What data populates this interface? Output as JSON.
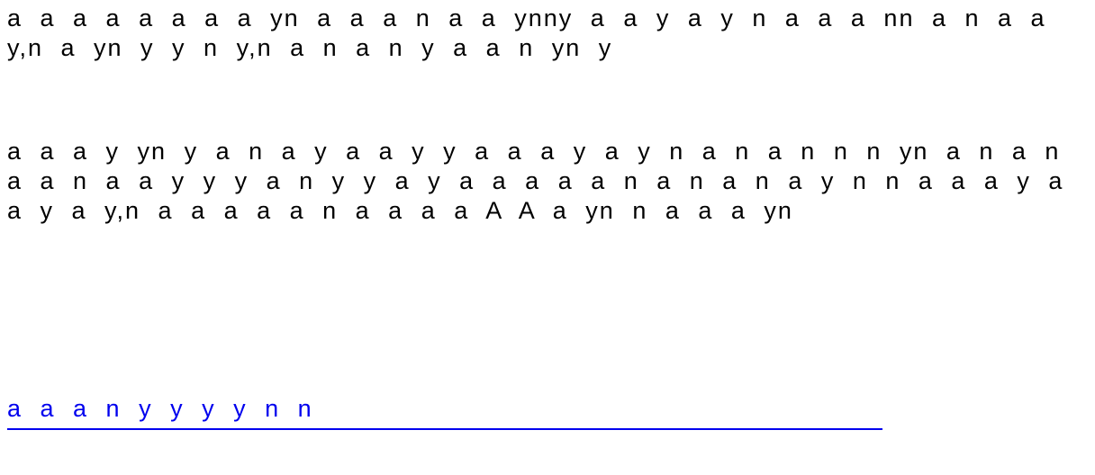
{
  "document": {
    "paragraphs": [
      "a a a a a a a a yn a a a n a a ynny a a y a y n a a a nn a n a a y,n a yn y y n y,n a n a n y a a n yn y",
      "a a a y yn y a n a y a a y y a a a y a y n a n a n n n yn a n a n a a n a a y y y a n y y a y a a a a a n a n a n a y n n a a a y a a y a y,n a a a a a n a a a a A A a yn n a a a yn"
    ],
    "link": {
      "text": "a a a n y y y y n n",
      "color": "#0000ee"
    },
    "text_color": "#000000"
  }
}
